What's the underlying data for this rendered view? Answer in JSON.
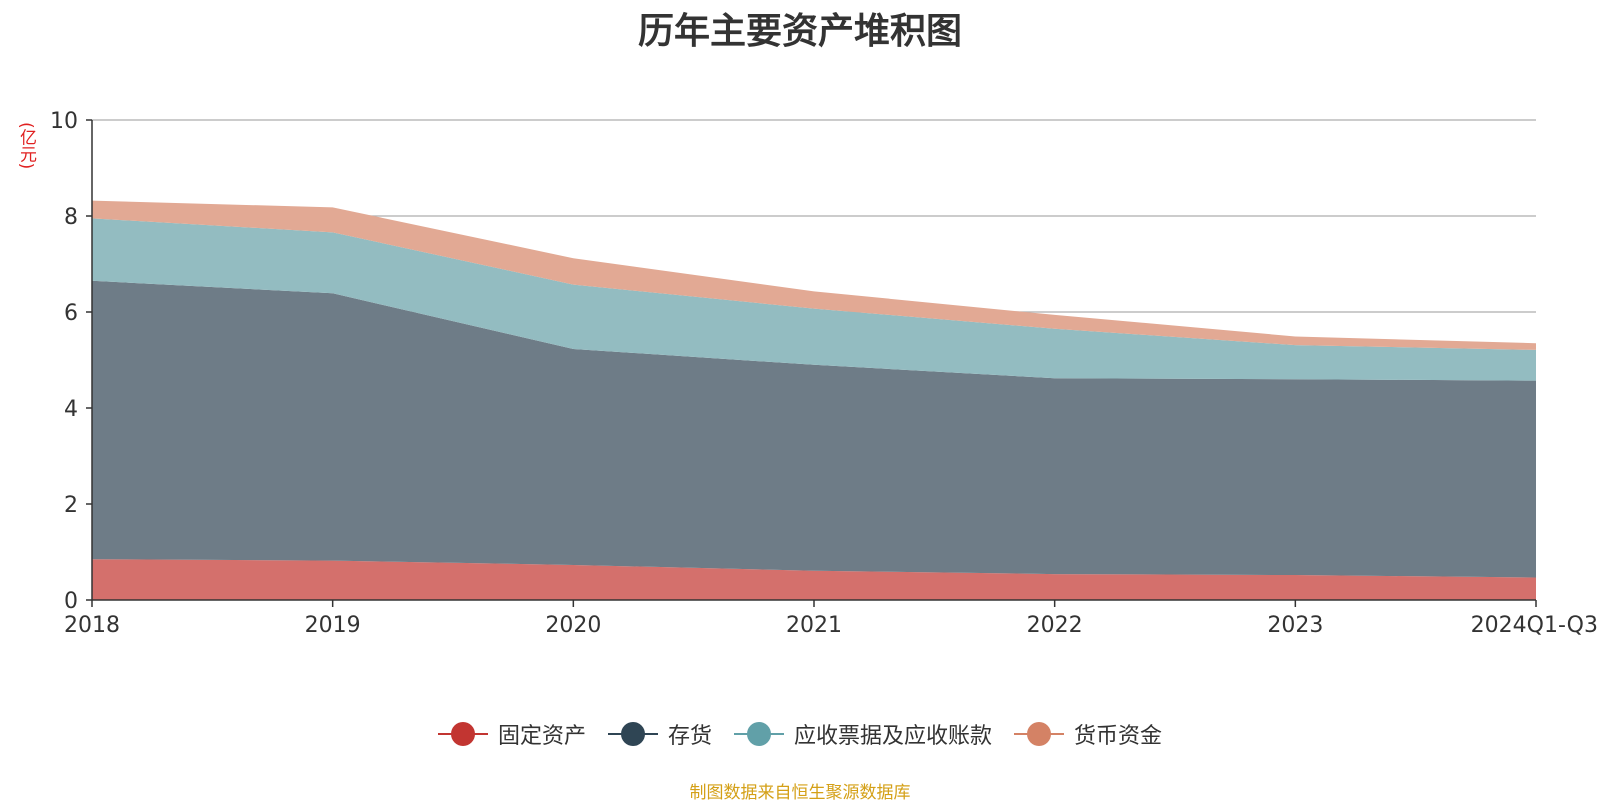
{
  "chart_data": {
    "type": "area",
    "stacked": true,
    "title": "历年主要资产堆积图",
    "ylabel": "(亿元)",
    "xlabel": "",
    "categories": [
      "2018",
      "2019",
      "2020",
      "2021",
      "2022",
      "2023",
      "2024Q1-Q3"
    ],
    "ylim": [
      0,
      10
    ],
    "yticks": [
      0,
      2,
      4,
      6,
      8,
      10
    ],
    "grid": true,
    "legend_position": "bottom",
    "series": [
      {
        "name": "固定资产",
        "color": "#c23531",
        "fill": "#d4706c",
        "values": [
          0.85,
          0.82,
          0.73,
          0.61,
          0.54,
          0.52,
          0.47
        ]
      },
      {
        "name": "存货",
        "color": "#2f4554",
        "fill": "#6e7c87",
        "values": [
          5.8,
          5.57,
          4.5,
          4.29,
          4.08,
          4.08,
          4.1
        ]
      },
      {
        "name": "应收票据及应收账款",
        "color": "#61a0a8",
        "fill": "#93bcc1",
        "values": [
          1.3,
          1.27,
          1.34,
          1.17,
          1.03,
          0.71,
          0.64
        ]
      },
      {
        "name": "货币资金",
        "color": "#d48265",
        "fill": "#e2a994",
        "values": [
          0.37,
          0.52,
          0.55,
          0.36,
          0.29,
          0.18,
          0.14
        ]
      }
    ]
  },
  "source_note": "制图数据来自恒生聚源数据库"
}
